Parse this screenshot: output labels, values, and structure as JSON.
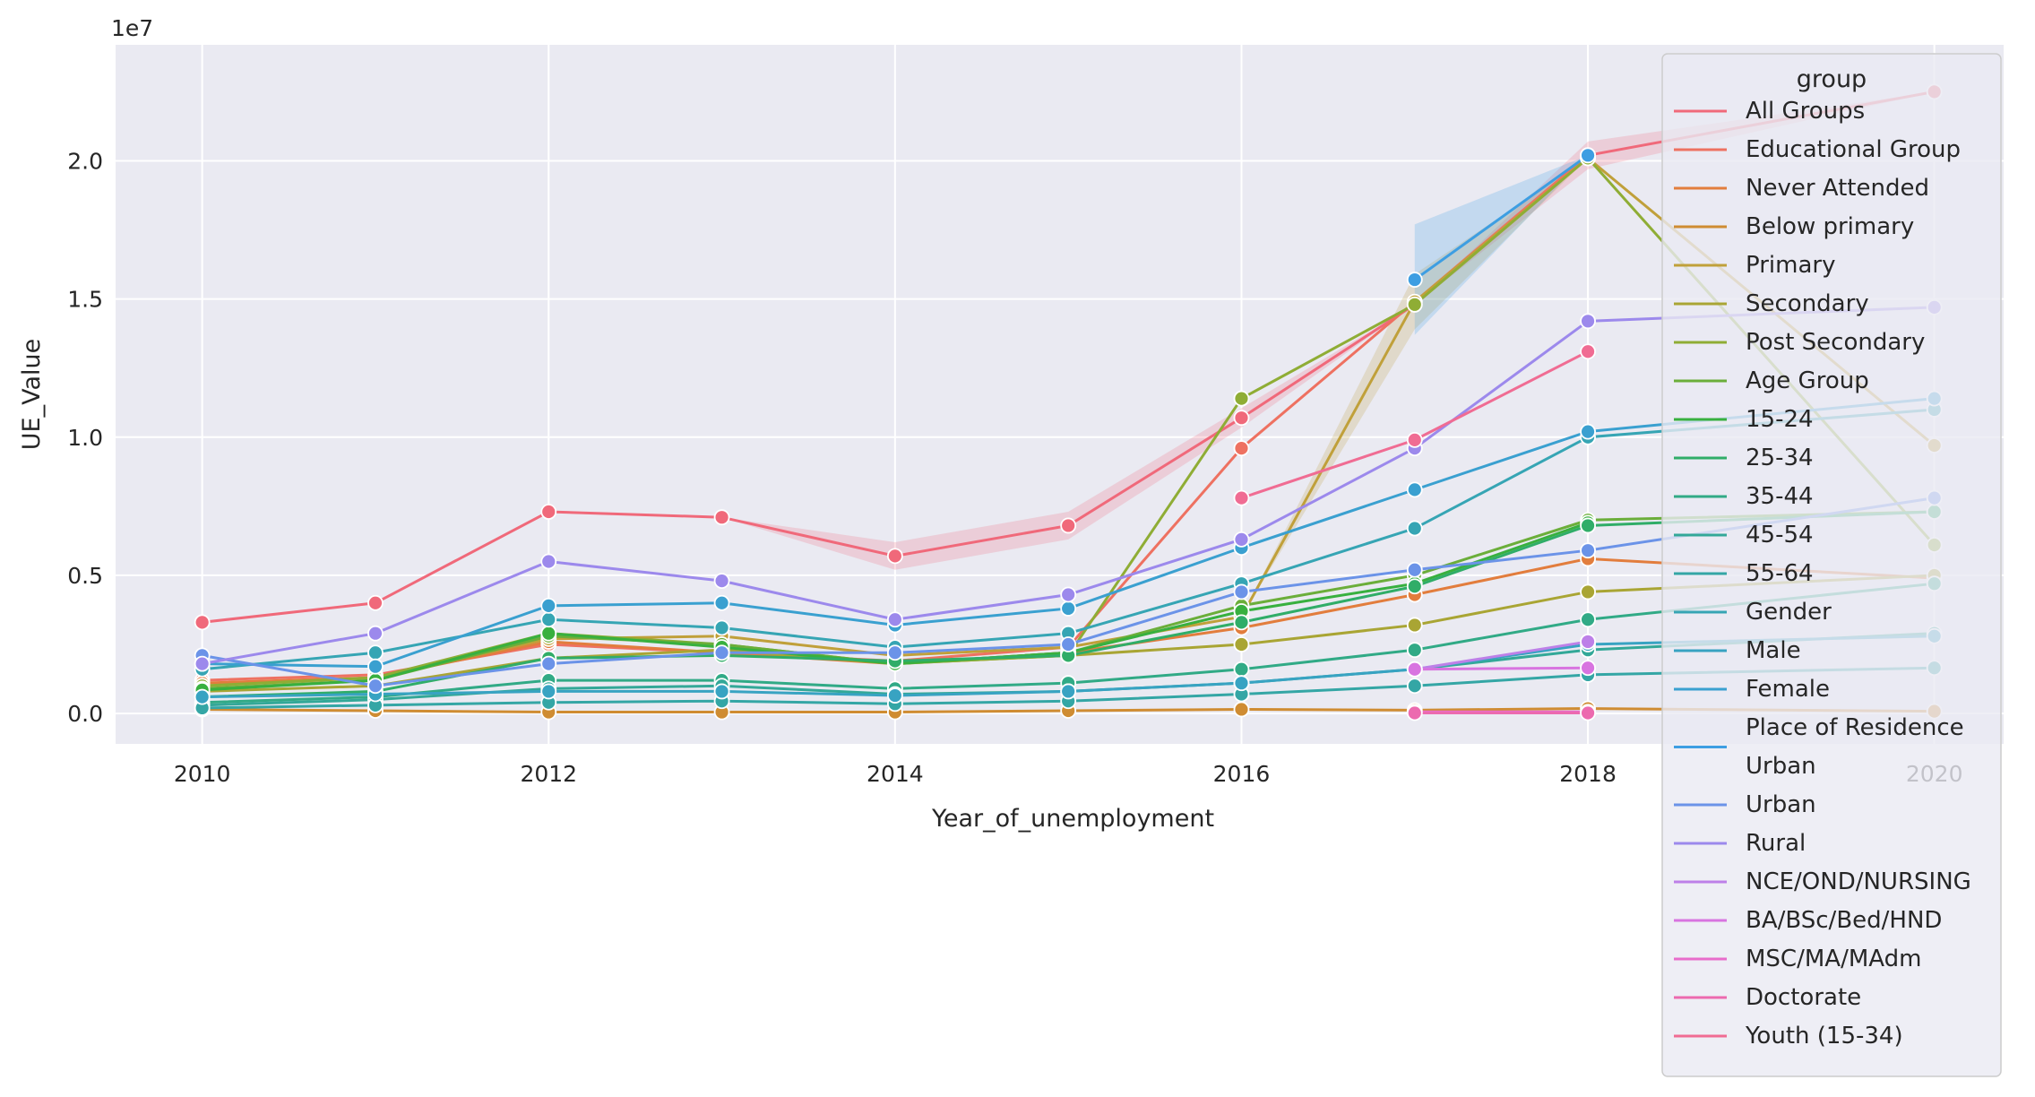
{
  "chart_data": {
    "type": "line",
    "xlabel": "Year_of_unemployment",
    "ylabel": "UE_Value",
    "y_offset_label": "1e7",
    "xlim": [
      2009.5,
      2020.4
    ],
    "ylim": [
      -1100000,
      24200000
    ],
    "x_ticks": [
      2010,
      2012,
      2014,
      2016,
      2018,
      2020
    ],
    "x_tick_labels": [
      "2010",
      "2012",
      "2014",
      "2016",
      "2018",
      "2020"
    ],
    "y_ticks": [
      0,
      5000000,
      10000000,
      15000000,
      20000000
    ],
    "y_tick_labels": [
      "0.0",
      "0.5",
      "1.0",
      "1.5",
      "2.0"
    ],
    "grid": true,
    "background": "#eaeaf2",
    "legend_title": "group",
    "legend_position": "top-right",
    "series": [
      {
        "name": "All Groups",
        "color": "#f0697a",
        "x": [
          2010,
          2011,
          2012,
          2013,
          2014,
          2015,
          2016,
          2017,
          2018,
          2020
        ],
        "y": [
          3300000,
          4000000,
          7300000,
          7100000,
          5700000,
          6800000,
          10700000,
          14800000,
          20200000,
          22500000
        ],
        "band": [
          null,
          null,
          null,
          null,
          1000000,
          1000000,
          700000,
          null,
          1000000,
          null
        ]
      },
      {
        "name": "Educational Group",
        "color": "#ee7161",
        "x": [
          2010,
          2011,
          2012,
          2013,
          2014,
          2015,
          2016,
          2017,
          2018
        ],
        "y": [
          1200000,
          1400000,
          2500000,
          2200000,
          1900000,
          2400000,
          9600000,
          14900000,
          20200000
        ],
        "band": [
          null,
          null,
          null,
          null,
          null,
          null,
          null,
          null,
          null
        ]
      },
      {
        "name": "Never Attended",
        "color": "#e27d3d",
        "x": [
          2010,
          2011,
          2012,
          2013,
          2014,
          2015,
          2016,
          2017,
          2018,
          2020
        ],
        "y": [
          1100000,
          1300000,
          2600000,
          2200000,
          1800000,
          2200000,
          3100000,
          4300000,
          5600000,
          4900000
        ],
        "band": [
          null,
          null,
          null,
          null,
          null,
          null,
          null,
          null,
          null,
          null
        ]
      },
      {
        "name": "Below primary",
        "color": "#cf8c32",
        "x": [
          2010,
          2011,
          2012,
          2013,
          2014,
          2015,
          2016,
          2017,
          2018,
          2020
        ],
        "y": [
          150000,
          100000,
          50000,
          50000,
          50000,
          100000,
          150000,
          120000,
          180000,
          80000
        ],
        "band": [
          null,
          null,
          null,
          null,
          null,
          null,
          null,
          null,
          null,
          null
        ]
      },
      {
        "name": "Primary",
        "color": "#c0a03a",
        "x": [
          2010,
          2011,
          2012,
          2013,
          2014,
          2015,
          2016,
          2017,
          2018,
          2020
        ],
        "y": [
          1000000,
          1300000,
          2700000,
          2800000,
          2100000,
          2400000,
          3500000,
          14900000,
          20100000,
          9700000
        ],
        "band": [
          null,
          null,
          null,
          null,
          null,
          null,
          null,
          2000000,
          null,
          null
        ]
      },
      {
        "name": "Secondary",
        "color": "#a9a534",
        "x": [
          2010,
          2011,
          2012,
          2013,
          2014,
          2015,
          2016,
          2017,
          2018,
          2020
        ],
        "y": [
          800000,
          1000000,
          2000000,
          2300000,
          1800000,
          2100000,
          2500000,
          3200000,
          4400000,
          5000000
        ],
        "band": [
          null,
          null,
          null,
          null,
          null,
          null,
          null,
          null,
          null,
          null
        ]
      },
      {
        "name": "Post Secondary",
        "color": "#8fad35",
        "x": [
          2010,
          2011,
          2012,
          2013,
          2014,
          2015,
          2016,
          2017,
          2018,
          2020
        ],
        "y": [
          1000000,
          1300000,
          2900000,
          2500000,
          1800000,
          2100000,
          11400000,
          14800000,
          20100000,
          6100000
        ],
        "band": [
          null,
          null,
          null,
          null,
          null,
          null,
          null,
          null,
          null,
          null
        ]
      },
      {
        "name": "Age Group",
        "color": "#6bae3a",
        "x": [
          2010,
          2011,
          2012,
          2013,
          2014,
          2015,
          2016,
          2017,
          2018,
          2020
        ],
        "y": [
          900000,
          1200000,
          2800000,
          2500000,
          1800000,
          2200000,
          3900000,
          5000000,
          7000000,
          7300000
        ],
        "band": [
          null,
          null,
          null,
          null,
          null,
          null,
          null,
          null,
          null,
          null
        ]
      },
      {
        "name": "15-24",
        "color": "#38b03f",
        "x": [
          2010,
          2011,
          2012,
          2013,
          2014,
          2015,
          2016,
          2017,
          2018
        ],
        "y": [
          850000,
          1200000,
          2900000,
          2400000,
          1800000,
          2200000,
          3700000,
          4700000,
          6900000
        ],
        "band": [
          null,
          null,
          null,
          null,
          null,
          null,
          null,
          null,
          null
        ]
      },
      {
        "name": "25-34",
        "color": "#30ad68",
        "x": [
          2010,
          2011,
          2012,
          2013,
          2014,
          2015,
          2016,
          2017,
          2018,
          2020
        ],
        "y": [
          600000,
          800000,
          2000000,
          2100000,
          1900000,
          2100000,
          3300000,
          4600000,
          6800000,
          7300000
        ],
        "band": [
          null,
          null,
          null,
          null,
          null,
          null,
          null,
          null,
          null,
          null
        ]
      },
      {
        "name": "35-44",
        "color": "#31aa86",
        "x": [
          2010,
          2011,
          2012,
          2013,
          2014,
          2015,
          2016,
          2017,
          2018,
          2020
        ],
        "y": [
          400000,
          600000,
          1200000,
          1200000,
          900000,
          1100000,
          1600000,
          2300000,
          3400000,
          4700000
        ],
        "band": [
          null,
          null,
          null,
          null,
          null,
          null,
          null,
          null,
          null,
          null
        ]
      },
      {
        "name": "45-54",
        "color": "#33a898",
        "x": [
          2010,
          2011,
          2012,
          2013,
          2014,
          2015,
          2016,
          2017,
          2018,
          2020
        ],
        "y": [
          300000,
          500000,
          900000,
          1000000,
          700000,
          800000,
          1100000,
          1600000,
          2300000,
          2900000
        ],
        "band": [
          null,
          null,
          null,
          null,
          null,
          null,
          null,
          null,
          null,
          null
        ]
      },
      {
        "name": "55-64",
        "color": "#34a6a5",
        "x": [
          2010,
          2011,
          2012,
          2013,
          2014,
          2015,
          2016,
          2017,
          2018,
          2020
        ],
        "y": [
          200000,
          300000,
          400000,
          450000,
          350000,
          450000,
          700000,
          1000000,
          1400000,
          1650000
        ],
        "band": [
          null,
          null,
          null,
          null,
          null,
          null,
          null,
          null,
          null,
          null
        ]
      },
      {
        "name": "Gender",
        "color": "#36a5b4",
        "x": [
          2010,
          2011,
          2012,
          2013,
          2014,
          2015,
          2016,
          2017,
          2018,
          2020
        ],
        "y": [
          1600000,
          2200000,
          3400000,
          3100000,
          2400000,
          2900000,
          4700000,
          6700000,
          10000000,
          11000000
        ],
        "band": [
          null,
          null,
          null,
          null,
          null,
          null,
          null,
          null,
          null,
          null
        ]
      },
      {
        "name": "Male",
        "color": "#38a3c2",
        "x": [
          2010,
          2011,
          2012,
          2013,
          2014,
          2015,
          2016,
          2017,
          2018,
          2020
        ],
        "y": [
          600000,
          700000,
          800000,
          800000,
          650000,
          800000,
          1100000,
          1600000,
          2500000,
          2800000
        ],
        "band": [
          null,
          null,
          null,
          null,
          null,
          null,
          null,
          null,
          null,
          null
        ]
      },
      {
        "name": "Female",
        "color": "#3aa0d0",
        "x": [
          2010,
          2011,
          2012,
          2013,
          2014,
          2015,
          2016,
          2017,
          2018,
          2020
        ],
        "y": [
          1800000,
          1700000,
          3900000,
          4000000,
          3200000,
          3800000,
          6000000,
          8100000,
          10200000,
          11400000
        ],
        "band": [
          null,
          null,
          null,
          null,
          null,
          null,
          null,
          null,
          null,
          null
        ]
      },
      {
        "name": "Place of Residence\nUrban",
        "color": "#3d9ee2",
        "x": [
          2017,
          2018
        ],
        "y": [
          15700000,
          20200000
        ],
        "band": [
          4000000,
          null
        ]
      },
      {
        "name": "Urban",
        "color": "#6b93e8",
        "x": [
          2010,
          2011,
          2012,
          2013,
          2014,
          2015,
          2016,
          2017,
          2018,
          2020
        ],
        "y": [
          2100000,
          1000000,
          1800000,
          2200000,
          2200000,
          2500000,
          4400000,
          5200000,
          5900000,
          7800000
        ],
        "band": [
          null,
          null,
          null,
          null,
          null,
          null,
          null,
          null,
          null,
          null
        ]
      },
      {
        "name": "Rural",
        "color": "#9c89ec",
        "x": [
          2010,
          2011,
          2012,
          2013,
          2014,
          2015,
          2016,
          2017,
          2018,
          2020
        ],
        "y": [
          1800000,
          2900000,
          5500000,
          4800000,
          3400000,
          4300000,
          6300000,
          9600000,
          14200000,
          14700000
        ],
        "band": [
          null,
          null,
          null,
          null,
          null,
          null,
          null,
          null,
          null,
          null
        ]
      },
      {
        "name": "NCE/OND/NURSING",
        "color": "#bd80e8",
        "x": [
          2017,
          2018
        ],
        "y": [
          1600000,
          2600000
        ],
        "band": [
          null,
          null
        ]
      },
      {
        "name": "BA/BSc/Bed/HND",
        "color": "#d874e0",
        "x": [
          2017,
          2018
        ],
        "y": [
          1600000,
          1650000
        ],
        "band": [
          null,
          null
        ]
      },
      {
        "name": "MSC/MA/MAdm",
        "color": "#e86ccb",
        "x": [
          2017,
          2018
        ],
        "y": [
          60000,
          60000
        ],
        "band": [
          null,
          null
        ]
      },
      {
        "name": "Doctorate",
        "color": "#ec6aaf",
        "x": [
          2017,
          2018
        ],
        "y": [
          20000,
          20000
        ],
        "band": [
          null,
          null
        ]
      },
      {
        "name": "Youth (15-34)",
        "color": "#f06c93",
        "x": [
          2016,
          2017,
          2018
        ],
        "y": [
          7800000,
          9900000,
          13100000
        ],
        "band": [
          null,
          null,
          null
        ]
      }
    ]
  }
}
